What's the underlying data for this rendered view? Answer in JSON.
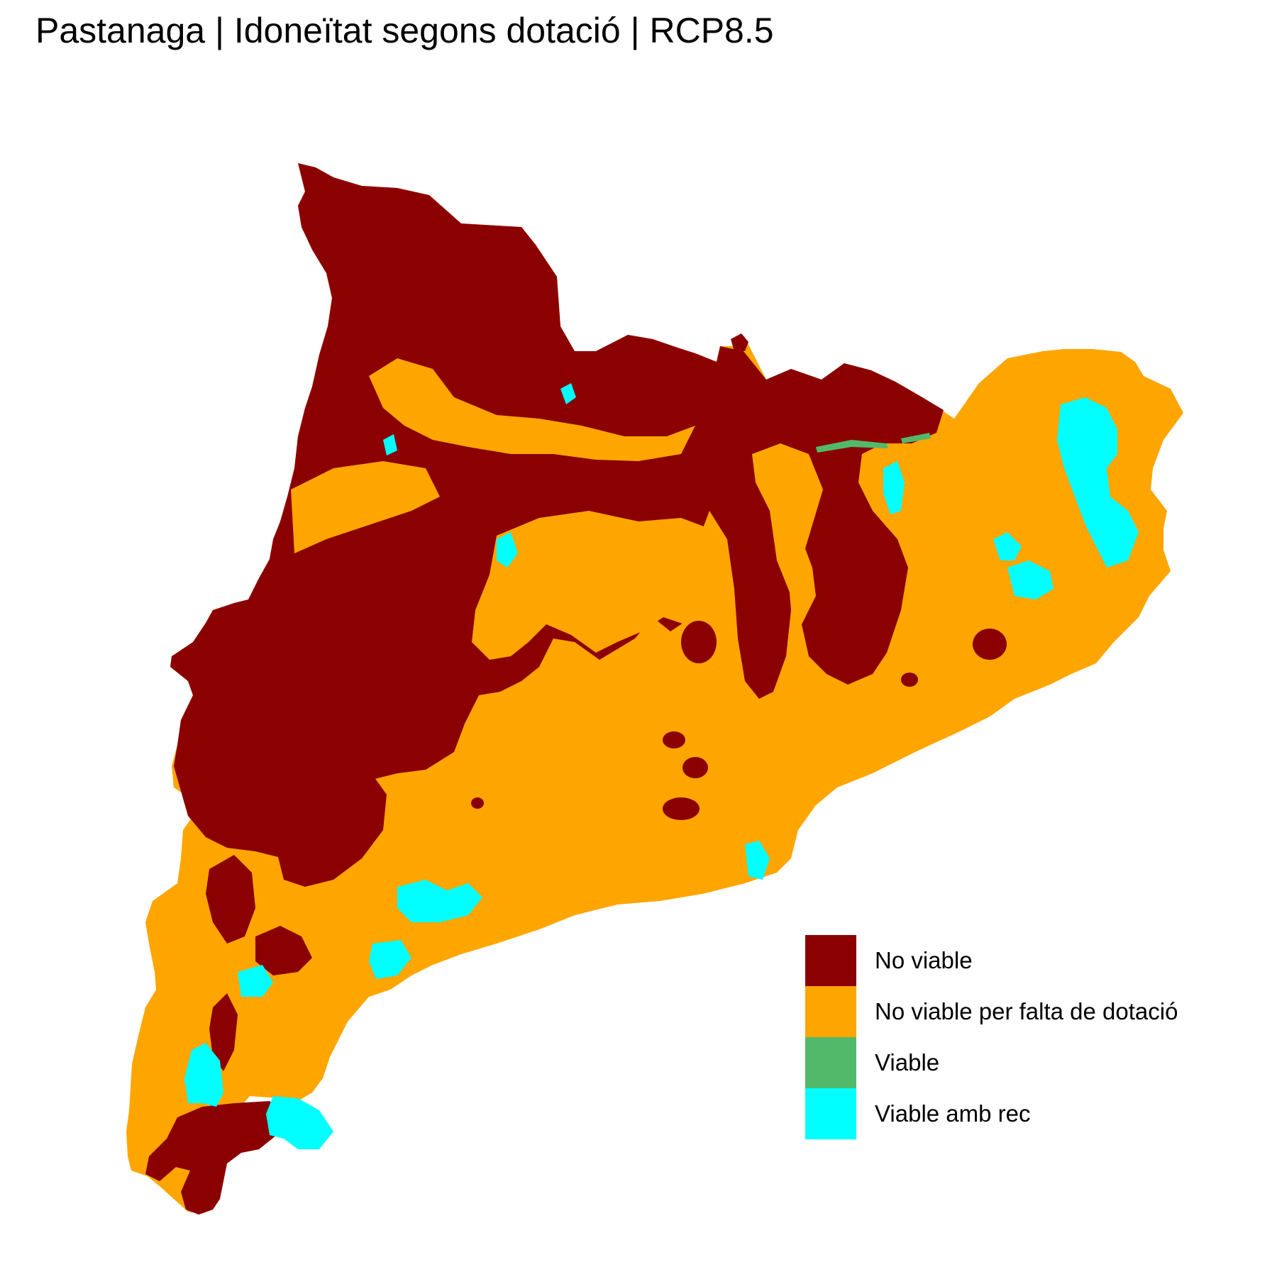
{
  "title": "Pastanaga | Idoneïtat segons dotació | RCP8.5",
  "colors": {
    "no_viable": "#8B0000",
    "no_viable_dotacio": "#FFA500",
    "viable": "#52B96B",
    "viable_rec": "#00FFFF"
  },
  "legend": {
    "items": [
      {
        "label": "No viable",
        "color": "#8B0000"
      },
      {
        "label": "No viable per falta de dotació",
        "color": "#FFA500"
      },
      {
        "label": "Viable",
        "color": "#52B96B"
      },
      {
        "label": "Viable amb rec",
        "color": "#00FFFF"
      }
    ]
  }
}
